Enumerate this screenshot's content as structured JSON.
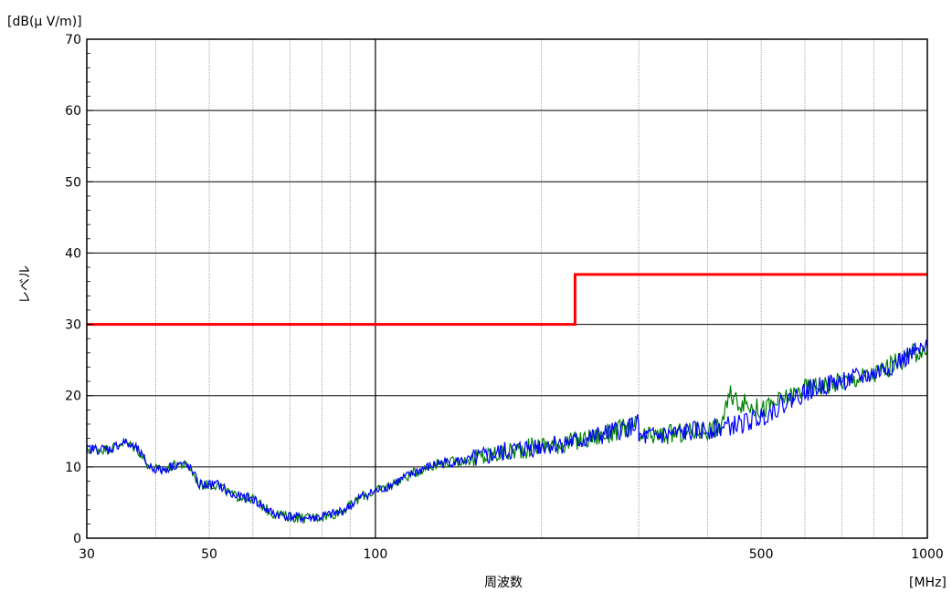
{
  "chart_data": {
    "type": "line",
    "y_unit": "[dB(μ V/m)]",
    "x_unit": "[MHz]",
    "xlabel": "周波数",
    "ylabel": "レベル",
    "x_scale": "log",
    "xlim": [
      30,
      1000
    ],
    "ylim": [
      0,
      70
    ],
    "grid": true,
    "x_ticks": [
      30,
      50,
      100,
      500,
      1000
    ],
    "x_tick_labels": [
      "30",
      "50",
      "100",
      "500",
      "1000"
    ],
    "y_ticks": [
      0,
      10,
      20,
      30,
      40,
      50,
      60,
      70
    ],
    "y_tick_labels": [
      "0",
      "10",
      "20",
      "30",
      "40",
      "50",
      "60",
      "70"
    ],
    "series": [
      {
        "role": "limit",
        "color": "#ff0000",
        "points": [
          [
            30,
            30
          ],
          [
            230,
            30
          ],
          [
            230,
            37
          ],
          [
            1000,
            37
          ]
        ]
      },
      {
        "role": "measured-green",
        "color": "#008000",
        "points": [
          [
            30,
            12.5
          ],
          [
            33,
            12.5
          ],
          [
            35,
            13.5
          ],
          [
            37,
            12.5
          ],
          [
            39,
            10
          ],
          [
            41,
            9.5
          ],
          [
            44,
            10.5
          ],
          [
            46,
            10
          ],
          [
            48,
            7.5
          ],
          [
            52,
            7.5
          ],
          [
            55,
            6
          ],
          [
            60,
            5.5
          ],
          [
            65,
            3.5
          ],
          [
            70,
            3
          ],
          [
            75,
            2.8
          ],
          [
            80,
            3
          ],
          [
            85,
            3.5
          ],
          [
            90,
            4.5
          ],
          [
            95,
            6
          ],
          [
            100,
            6.5
          ],
          [
            110,
            8
          ],
          [
            120,
            9.5
          ],
          [
            130,
            10.5
          ],
          [
            150,
            11
          ],
          [
            170,
            12
          ],
          [
            200,
            13
          ],
          [
            230,
            13.5
          ],
          [
            260,
            14.5
          ],
          [
            300,
            16
          ],
          [
            300,
            14
          ],
          [
            340,
            14.5
          ],
          [
            380,
            15
          ],
          [
            420,
            15.5
          ],
          [
            440,
            20
          ],
          [
            460,
            19
          ],
          [
            480,
            18.5
          ],
          [
            500,
            18
          ],
          [
            550,
            19.5
          ],
          [
            600,
            21
          ],
          [
            650,
            21.5
          ],
          [
            700,
            22
          ],
          [
            750,
            22.5
          ],
          [
            800,
            23
          ],
          [
            850,
            24
          ],
          [
            900,
            25
          ],
          [
            950,
            26
          ],
          [
            1000,
            26.5
          ]
        ]
      },
      {
        "role": "measured-blue",
        "color": "#0000ff",
        "points": [
          [
            30,
            12.5
          ],
          [
            33,
            12.5
          ],
          [
            35,
            13.5
          ],
          [
            37,
            12.5
          ],
          [
            39,
            10
          ],
          [
            41,
            9.5
          ],
          [
            44,
            10.5
          ],
          [
            46,
            10
          ],
          [
            48,
            7.5
          ],
          [
            52,
            7.5
          ],
          [
            55,
            6
          ],
          [
            60,
            5.5
          ],
          [
            65,
            3.5
          ],
          [
            70,
            3
          ],
          [
            75,
            2.8
          ],
          [
            80,
            3
          ],
          [
            85,
            3.5
          ],
          [
            90,
            4.5
          ],
          [
            95,
            6
          ],
          [
            100,
            6.5
          ],
          [
            110,
            8
          ],
          [
            120,
            9.5
          ],
          [
            130,
            10.5
          ],
          [
            150,
            11
          ],
          [
            170,
            12
          ],
          [
            200,
            13
          ],
          [
            230,
            13.5
          ],
          [
            260,
            14.5
          ],
          [
            300,
            16
          ],
          [
            300,
            14
          ],
          [
            340,
            14.5
          ],
          [
            380,
            15
          ],
          [
            420,
            15.5
          ],
          [
            460,
            16
          ],
          [
            500,
            17
          ],
          [
            550,
            19
          ],
          [
            600,
            20.5
          ],
          [
            650,
            21.5
          ],
          [
            700,
            22
          ],
          [
            750,
            22.5
          ],
          [
            800,
            23
          ],
          [
            850,
            24
          ],
          [
            900,
            25
          ],
          [
            950,
            26
          ],
          [
            1000,
            26.5
          ]
        ]
      }
    ]
  }
}
